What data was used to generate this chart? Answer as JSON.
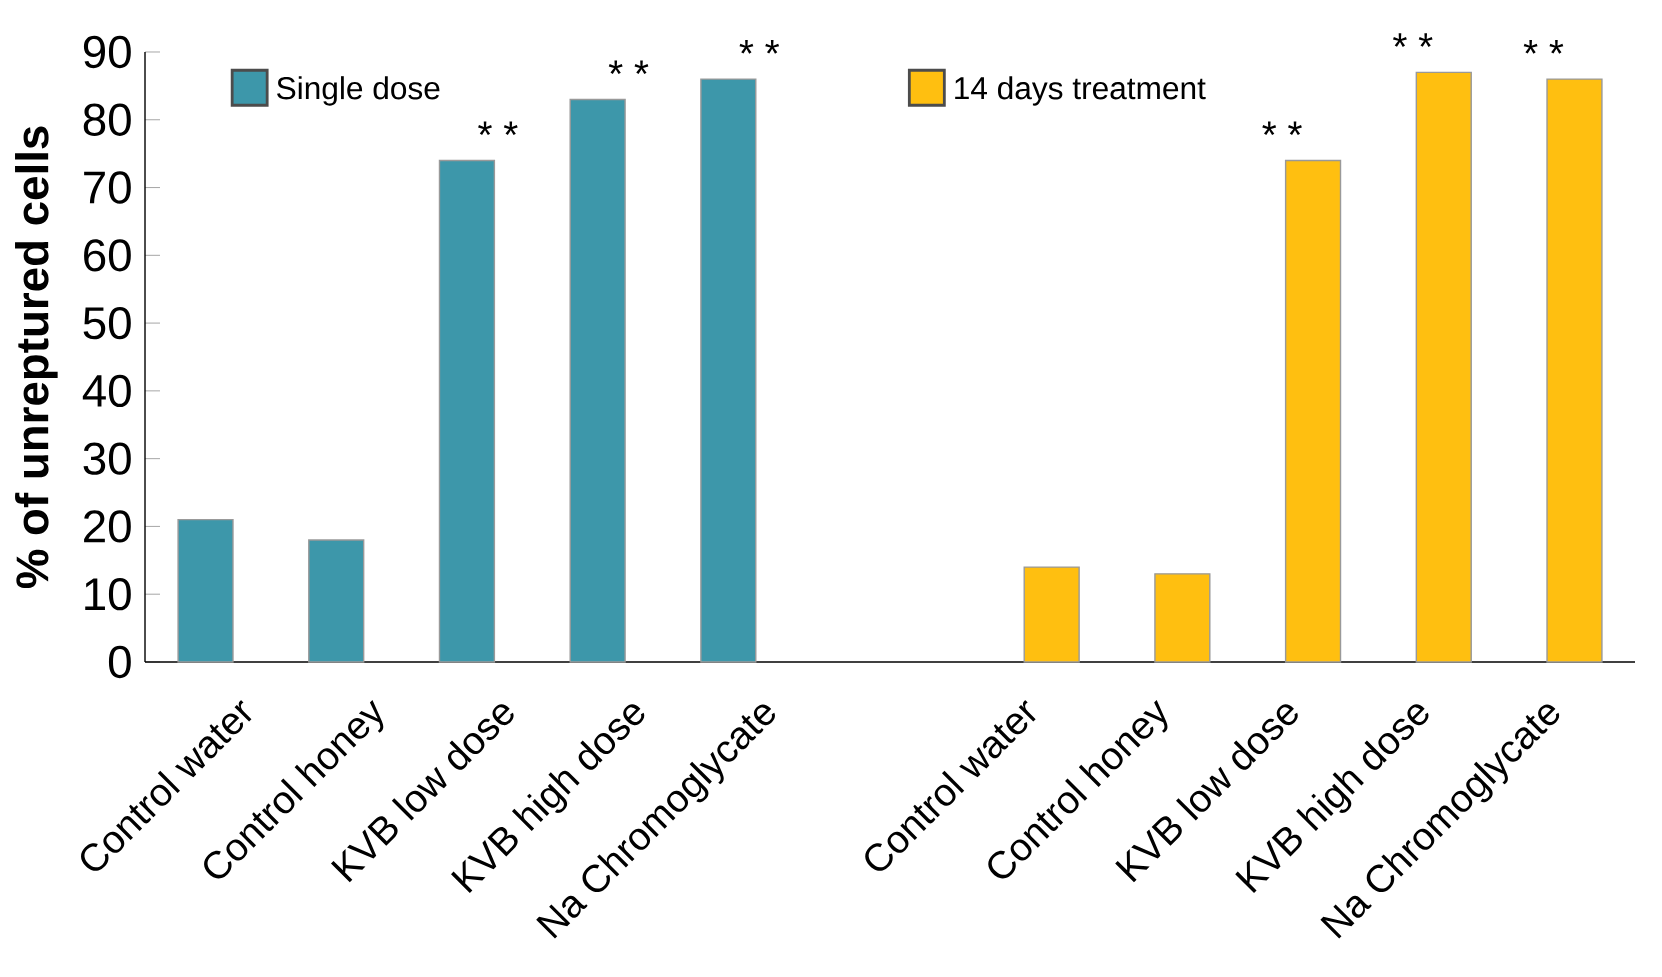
{
  "chart_data": {
    "type": "bar",
    "ylabel": "% of unreptured cells",
    "categories": [
      "Control water",
      "Control honey",
      "KVB low dose",
      "KVB high dose",
      "Na Chromoglycate",
      null,
      "Control water",
      "Control honey",
      "KVB low dose",
      "KVB high dose",
      "Na Chromoglycate"
    ],
    "series": [
      {
        "name": "Single dose",
        "color": "#3d97aa",
        "values": [
          21,
          18,
          74,
          83,
          86,
          null,
          null,
          null,
          null,
          null,
          null
        ],
        "value_labels": [
          null,
          null,
          "* *",
          "* *",
          "* *",
          null,
          null,
          null,
          null,
          null,
          null
        ]
      },
      {
        "name": "14 days treatment",
        "color": "#ffbf10",
        "values": [
          null,
          null,
          null,
          null,
          null,
          null,
          14,
          13,
          74,
          87,
          86
        ],
        "value_labels": [
          null,
          null,
          null,
          null,
          null,
          null,
          null,
          null,
          "* *",
          "* *",
          "* *"
        ]
      }
    ],
    "ylim": [
      0,
      90
    ],
    "yticks": [
      0,
      10,
      20,
      30,
      40,
      50,
      60,
      70,
      80,
      90
    ],
    "grid": false,
    "legend": "top"
  }
}
